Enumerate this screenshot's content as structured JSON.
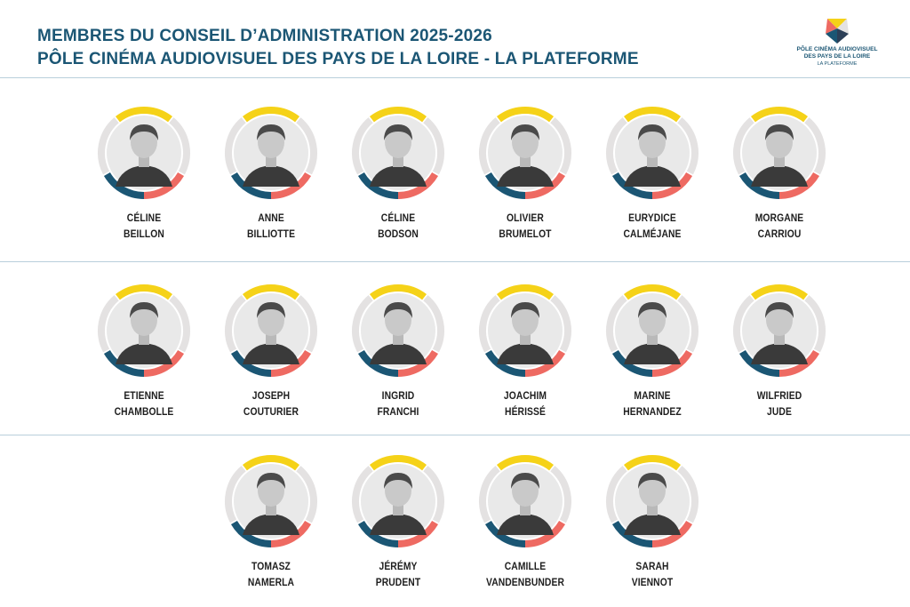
{
  "header": {
    "line1": "MEMBRES DU CONSEIL D’ADMINISTRATION 2025-2026",
    "line2": "PÔLE CINÉMA AUDIOVISUEL DES PAYS DE LA LOIRE - LA PLATEFORME"
  },
  "logo": {
    "line1": "PÔLE CINÉMA AUDIOVISUEL",
    "line2": "DES PAYS DE LA LOIRE",
    "line3": "LA PLATEFORME"
  },
  "colors": {
    "title": "#1b5674",
    "ring_yellow": "#f5d218",
    "ring_grey": "#e4e2e2",
    "ring_blue": "#1b5674",
    "ring_coral": "#ee6a62"
  },
  "members": [
    {
      "first": "CÉLINE",
      "last": "BEILLON"
    },
    {
      "first": "ANNE",
      "last": "BILLIOTTE"
    },
    {
      "first": "CÉLINE",
      "last": "BODSON"
    },
    {
      "first": "OLIVIER",
      "last": "BRUMELOT"
    },
    {
      "first": "EURYDICE",
      "last": "CALMÉJANE"
    },
    {
      "first": "MORGANE",
      "last": "CARRIOU"
    },
    {
      "first": "ETIENNE",
      "last": "CHAMBOLLE"
    },
    {
      "first": "JOSEPH",
      "last": "COUTURIER"
    },
    {
      "first": "INGRID",
      "last": "FRANCHI"
    },
    {
      "first": "JOACHIM",
      "last": "HÉRISSÉ"
    },
    {
      "first": "MARINE",
      "last": "HERNANDEZ"
    },
    {
      "first": "WILFRIED",
      "last": "JUDE"
    },
    {
      "first": "TOMASZ",
      "last": "NAMERLA"
    },
    {
      "first": "JÉRÉMY",
      "last": "PRUDENT"
    },
    {
      "first": "CAMILLE",
      "last": "VANDENBUNDER"
    },
    {
      "first": "SARAH",
      "last": "VIENNOT"
    }
  ]
}
